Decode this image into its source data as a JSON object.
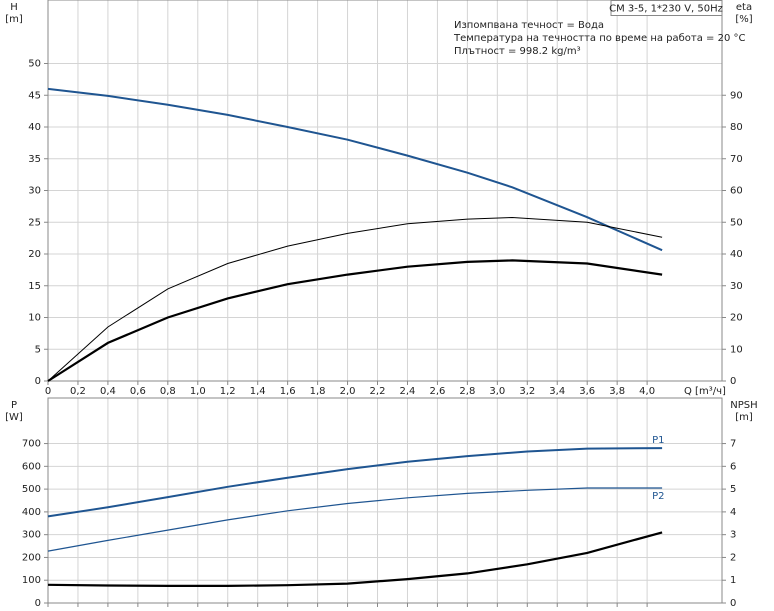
{
  "chart_data": [
    {
      "type": "line",
      "title": "CM 3-5, 1*230 V, 50Hz",
      "annotations": [
        "Изпомпвана течност = Вода",
        "Температура на течността по време на работа = 20 °C",
        "Плътност = 998.2 kg/m³"
      ],
      "xlabel": "Q [m³/ч]",
      "ylabel": "H",
      "yunit": "[m]",
      "y2label": "eta",
      "y2unit": "[%]",
      "xlim": [
        0,
        4.5
      ],
      "xticks": [
        0,
        {
          "value": 0.2,
          "label": "0,2"
        },
        {
          "value": 0.4,
          "label": "0,4"
        },
        {
          "value": 0.6,
          "label": "0,6"
        },
        {
          "value": 0.8,
          "label": "0,8"
        },
        {
          "value": 1.0,
          "label": "1,0"
        },
        {
          "value": 1.2,
          "label": "1,2"
        },
        {
          "value": 1.4,
          "label": "1,4"
        },
        {
          "value": 1.6,
          "label": "1,6"
        },
        {
          "value": 1.8,
          "label": "1,8"
        },
        {
          "value": 2.0,
          "label": "2,0"
        },
        {
          "value": 2.2,
          "label": "2,2"
        },
        {
          "value": 2.4,
          "label": "2,4"
        },
        {
          "value": 2.6,
          "label": "2,6"
        },
        {
          "value": 2.8,
          "label": "2,8"
        },
        {
          "value": 3.0,
          "label": "3,0"
        },
        {
          "value": 3.2,
          "label": "3,2"
        },
        {
          "value": 3.4,
          "label": "3,4"
        },
        {
          "value": 3.6,
          "label": "3,6"
        },
        {
          "value": 3.8,
          "label": "3,8"
        },
        {
          "value": 4.0,
          "label": "4,0"
        }
      ],
      "ylim": [
        0,
        60
      ],
      "yticks": [
        0,
        5,
        10,
        15,
        20,
        25,
        30,
        35,
        40,
        45,
        50
      ],
      "y2lim": [
        0,
        120
      ],
      "y2ticks": [
        0,
        10,
        20,
        30,
        40,
        50,
        60,
        70,
        80,
        90
      ],
      "grid": true,
      "x": [
        0,
        0.4,
        0.8,
        1.2,
        1.6,
        2.0,
        2.4,
        2.8,
        3.1,
        3.6,
        4.1
      ],
      "series": [
        {
          "color": "#1f5591",
          "values": [
            46,
            44.9,
            43.5,
            41.9,
            40,
            38,
            35.5,
            32.8,
            30.5,
            25.8,
            20.6
          ]
        },
        {
          "color": "#000000",
          "axis": "y2",
          "values": [
            0,
            17,
            29,
            37,
            42.5,
            46.5,
            49.5,
            51,
            51.5,
            50,
            45.3
          ]
        },
        {
          "color": "#000000",
          "axis": "y2",
          "values": [
            0,
            12,
            20,
            26,
            30.5,
            33.5,
            36,
            37.5,
            38,
            37,
            33.5
          ]
        }
      ]
    },
    {
      "type": "line",
      "ylabel": "P",
      "yunit": "[W]",
      "y2label": "NPSH",
      "y2unit": "[m]",
      "xlim": [
        0,
        4.5
      ],
      "ylim": [
        0,
        900
      ],
      "yticks": [
        0,
        100,
        200,
        300,
        400,
        500,
        600,
        700
      ],
      "y2lim": [
        0,
        9
      ],
      "y2ticks": [
        0,
        1,
        2,
        3,
        4,
        5,
        6,
        7
      ],
      "grid": true,
      "x": [
        0,
        0.4,
        0.8,
        1.2,
        1.6,
        2.0,
        2.4,
        2.8,
        3.2,
        3.6,
        4.1
      ],
      "series": [
        {
          "name": "P1",
          "color": "#1f5591",
          "values": [
            380,
            420,
            465,
            510,
            550,
            588,
            620,
            645,
            665,
            678,
            680
          ]
        },
        {
          "name": "P2",
          "color": "#1f5591",
          "values": [
            228,
            275,
            320,
            365,
            405,
            437,
            462,
            481,
            495,
            505,
            505
          ]
        },
        {
          "color": "#000000",
          "axis": "y2",
          "values": [
            0.8,
            0.77,
            0.75,
            0.75,
            0.78,
            0.85,
            1.05,
            1.3,
            1.7,
            2.2,
            3.1
          ]
        }
      ]
    }
  ]
}
